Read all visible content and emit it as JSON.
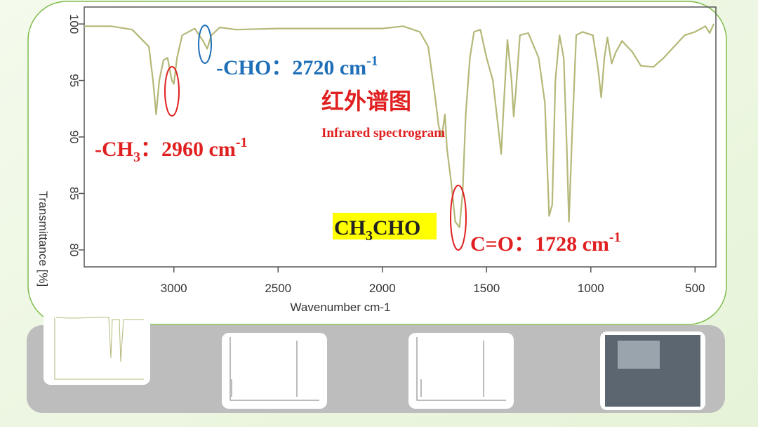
{
  "chart_data": {
    "type": "line",
    "x_label": "Wavenumber cm-1",
    "y_label": "Transmittance [%]",
    "xlim": [
      3430,
      400
    ],
    "ylim": [
      78.5,
      101.5
    ],
    "xticks": [
      3000,
      2500,
      2000,
      1500,
      1000,
      500
    ],
    "yticks": [
      80,
      85,
      90,
      95,
      100
    ],
    "color": "#b5b878",
    "x": [
      3430,
      3300,
      3200,
      3120,
      3100,
      3085,
      3070,
      3050,
      3030,
      3010,
      3000,
      2985,
      2960,
      2900,
      2860,
      2840,
      2820,
      2780,
      2700,
      2500,
      2200,
      2000,
      1900,
      1820,
      1780,
      1750,
      1730,
      1715,
      1700,
      1690,
      1670,
      1650,
      1630,
      1615,
      1600,
      1580,
      1560,
      1530,
      1500,
      1470,
      1445,
      1430,
      1420,
      1400,
      1380,
      1370,
      1360,
      1340,
      1300,
      1250,
      1220,
      1200,
      1185,
      1170,
      1150,
      1130,
      1115,
      1105,
      1090,
      1070,
      1040,
      990,
      965,
      950,
      935,
      920,
      900,
      880,
      850,
      800,
      760,
      700,
      650,
      600,
      550,
      500,
      450,
      430,
      410
    ],
    "values": [
      99.8,
      99.8,
      99.5,
      98,
      95,
      92,
      95,
      96.8,
      97,
      95,
      94.7,
      97,
      99,
      99.6,
      98.5,
      97.8,
      99,
      99.7,
      99.5,
      99.6,
      99.6,
      99.6,
      99.8,
      99.3,
      98,
      94,
      91,
      90,
      92,
      89,
      86,
      82.5,
      82,
      85,
      92,
      97,
      99.3,
      99.5,
      97,
      95,
      91,
      88.5,
      92,
      98.6,
      95,
      91.8,
      94,
      99,
      99.2,
      97,
      93,
      83,
      84,
      95,
      99,
      97,
      89,
      82.5,
      90,
      99,
      99.3,
      99,
      96,
      93.5,
      97,
      98.8,
      96.5,
      97.5,
      98.5,
      97.5,
      96.3,
      96.2,
      97,
      98,
      99,
      99.3,
      99.8,
      99.2,
      100
    ],
    "annotations": [
      {
        "parts": [
          "-CH",
          "3",
          "：2960 cm",
          "-1"
        ],
        "color": "#e02020"
      },
      {
        "parts": [
          "-CHO：2720 cm",
          "-1"
        ],
        "color": "#1f6fb8"
      },
      {
        "parts": [
          "C=O：1728 cm",
          "-1"
        ],
        "color": "#e02020"
      },
      {
        "parts": [
          "CH",
          "3",
          "CHO"
        ],
        "color": "#222222"
      }
    ],
    "title": "红外谱图",
    "subtitle": "Infrared spectrogram"
  }
}
